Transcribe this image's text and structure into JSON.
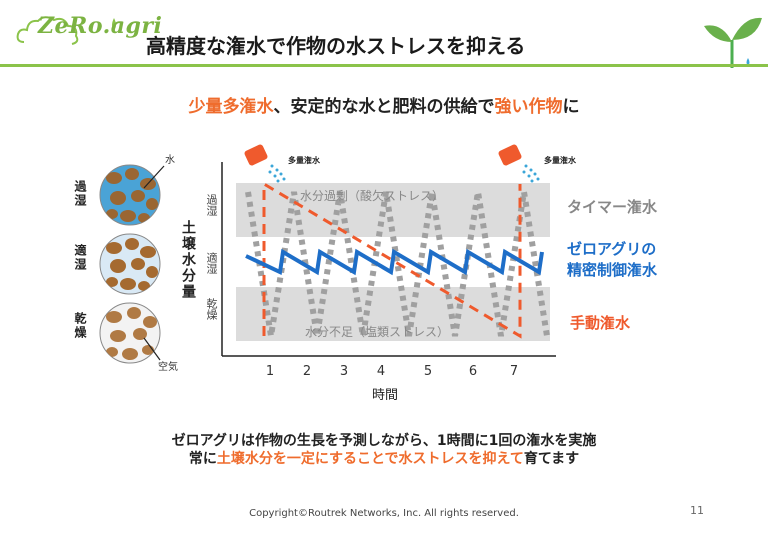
{
  "header": {
    "logo_text": "ZeRo.agri",
    "title": "高精度な潅水で作物の水ストレスを抑える"
  },
  "subtitle": {
    "part1": "少量多潅水",
    "part2": "、安定的な水と肥料の供給で",
    "part3": "強い作物",
    "part4": "に"
  },
  "soil": {
    "labels": [
      "過湿",
      "適湿",
      "乾燥"
    ],
    "water_label": "水",
    "air_label": "空気"
  },
  "chart_data": {
    "type": "line",
    "ylabel": "土壌水分量",
    "xlabel": "時間",
    "x_ticks": [
      1,
      2,
      3,
      4,
      5,
      6,
      7
    ],
    "y_labels": [
      "過湿",
      "適湿",
      "乾燥"
    ],
    "bands": [
      "水分過剰（酸欠ストレス）",
      "水分不足（塩類ストレス）"
    ],
    "watering_label": "多量潅水",
    "series": [
      {
        "name": "タイマー潅水",
        "style": "dotted",
        "color": "#a0a0a0"
      },
      {
        "name": "ゼロアグリの精密制御潅水",
        "style": "solid",
        "color": "#1e6ec8"
      },
      {
        "name": "手動潅水",
        "style": "dashed",
        "color": "#ef5a2d"
      }
    ]
  },
  "legend": {
    "timer": "タイマー潅水",
    "zero_line1": "ゼロアグリの",
    "zero_line2": "精密制御潅水",
    "manual": "手動潅水"
  },
  "bottom": {
    "line1": "ゼロアグリは作物の生長を予測しながら、1時間に1回の潅水を実施",
    "line2_pre": "常に",
    "line2_highlight": "土壌水分を一定にすることで水ストレスを抑えて",
    "line2_post": "育てます"
  },
  "footer": {
    "copyright": "Copyright©Routrek Networks, Inc. All rights reserved.",
    "page": "11"
  },
  "colors": {
    "accent_green": "#8bc34a",
    "orange": "#ef6c2d",
    "blue": "#1e6ec8",
    "gray": "#a0a0a0"
  }
}
